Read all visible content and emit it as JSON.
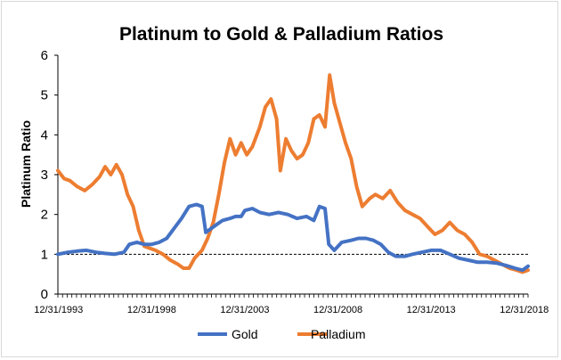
{
  "chart_data": {
    "type": "line",
    "title": "Platinum to Gold & Palladium Ratios",
    "xlabel": "",
    "ylabel": "Platinum Ratio",
    "x_ticks": [
      "12/31/1993",
      "12/31/1998",
      "12/31/2003",
      "12/31/2008",
      "12/31/2013",
      "12/31/2018"
    ],
    "y_ticks": [
      "0",
      "1",
      "2",
      "3",
      "4",
      "5",
      "6"
    ],
    "xlim": [
      1993.96,
      2019.2
    ],
    "ylim": [
      0,
      6
    ],
    "grid": false,
    "legend_position": "bottom",
    "reference_line": {
      "y": 1,
      "style": "dashed",
      "color": "#000000"
    },
    "series": [
      {
        "name": "Gold",
        "color": "#4472c4",
        "points": [
          [
            1993.96,
            1.0
          ],
          [
            1994.5,
            1.05
          ],
          [
            1995.0,
            1.08
          ],
          [
            1995.5,
            1.1
          ],
          [
            1996.0,
            1.05
          ],
          [
            1996.5,
            1.02
          ],
          [
            1997.0,
            1.0
          ],
          [
            1997.5,
            1.05
          ],
          [
            1997.8,
            1.25
          ],
          [
            1998.2,
            1.3
          ],
          [
            1998.6,
            1.25
          ],
          [
            1999.0,
            1.25
          ],
          [
            1999.4,
            1.3
          ],
          [
            1999.8,
            1.4
          ],
          [
            2000.2,
            1.65
          ],
          [
            2000.6,
            1.9
          ],
          [
            2001.0,
            2.2
          ],
          [
            2001.4,
            2.25
          ],
          [
            2001.7,
            2.2
          ],
          [
            2001.9,
            1.55
          ],
          [
            2002.2,
            1.65
          ],
          [
            2002.5,
            1.75
          ],
          [
            2002.8,
            1.85
          ],
          [
            2003.2,
            1.9
          ],
          [
            2003.5,
            1.95
          ],
          [
            2003.8,
            1.95
          ],
          [
            2004.0,
            2.1
          ],
          [
            2004.4,
            2.15
          ],
          [
            2004.8,
            2.05
          ],
          [
            2005.3,
            2.0
          ],
          [
            2005.8,
            2.05
          ],
          [
            2006.3,
            2.0
          ],
          [
            2006.8,
            1.9
          ],
          [
            2007.3,
            1.95
          ],
          [
            2007.7,
            1.85
          ],
          [
            2008.0,
            2.2
          ],
          [
            2008.3,
            2.15
          ],
          [
            2008.5,
            1.25
          ],
          [
            2008.8,
            1.1
          ],
          [
            2009.2,
            1.3
          ],
          [
            2009.7,
            1.35
          ],
          [
            2010.1,
            1.4
          ],
          [
            2010.5,
            1.4
          ],
          [
            2010.9,
            1.35
          ],
          [
            2011.3,
            1.25
          ],
          [
            2011.7,
            1.05
          ],
          [
            2012.1,
            0.95
          ],
          [
            2012.6,
            0.95
          ],
          [
            2013.0,
            1.0
          ],
          [
            2013.5,
            1.05
          ],
          [
            2014.0,
            1.1
          ],
          [
            2014.5,
            1.1
          ],
          [
            2015.0,
            1.0
          ],
          [
            2015.5,
            0.9
          ],
          [
            2016.0,
            0.85
          ],
          [
            2016.5,
            0.8
          ],
          [
            2017.0,
            0.8
          ],
          [
            2017.5,
            0.78
          ],
          [
            2018.0,
            0.72
          ],
          [
            2018.5,
            0.65
          ],
          [
            2018.9,
            0.6
          ],
          [
            2019.2,
            0.7
          ]
        ]
      },
      {
        "name": "Palladium",
        "color": "#ed7d31",
        "points": [
          [
            1993.96,
            3.1
          ],
          [
            1994.3,
            2.9
          ],
          [
            1994.6,
            2.85
          ],
          [
            1995.0,
            2.7
          ],
          [
            1995.4,
            2.6
          ],
          [
            1995.8,
            2.75
          ],
          [
            1996.2,
            2.95
          ],
          [
            1996.5,
            3.2
          ],
          [
            1996.8,
            3.0
          ],
          [
            1997.1,
            3.25
          ],
          [
            1997.4,
            3.0
          ],
          [
            1997.7,
            2.5
          ],
          [
            1998.0,
            2.2
          ],
          [
            1998.3,
            1.6
          ],
          [
            1998.6,
            1.2
          ],
          [
            1998.9,
            1.15
          ],
          [
            1999.2,
            1.1
          ],
          [
            1999.6,
            1.0
          ],
          [
            2000.0,
            0.85
          ],
          [
            2000.4,
            0.75
          ],
          [
            2000.7,
            0.65
          ],
          [
            2001.0,
            0.65
          ],
          [
            2001.3,
            0.9
          ],
          [
            2001.7,
            1.1
          ],
          [
            2002.0,
            1.4
          ],
          [
            2002.3,
            1.8
          ],
          [
            2002.6,
            2.5
          ],
          [
            2002.9,
            3.3
          ],
          [
            2003.2,
            3.9
          ],
          [
            2003.5,
            3.5
          ],
          [
            2003.8,
            3.8
          ],
          [
            2004.1,
            3.5
          ],
          [
            2004.4,
            3.7
          ],
          [
            2004.8,
            4.2
          ],
          [
            2005.1,
            4.7
          ],
          [
            2005.4,
            4.9
          ],
          [
            2005.7,
            4.4
          ],
          [
            2005.9,
            3.1
          ],
          [
            2006.2,
            3.9
          ],
          [
            2006.5,
            3.6
          ],
          [
            2006.8,
            3.4
          ],
          [
            2007.1,
            3.5
          ],
          [
            2007.4,
            3.8
          ],
          [
            2007.7,
            4.4
          ],
          [
            2008.0,
            4.5
          ],
          [
            2008.3,
            4.2
          ],
          [
            2008.55,
            5.5
          ],
          [
            2008.8,
            4.8
          ],
          [
            2009.1,
            4.3
          ],
          [
            2009.4,
            3.8
          ],
          [
            2009.7,
            3.4
          ],
          [
            2010.0,
            2.7
          ],
          [
            2010.3,
            2.2
          ],
          [
            2010.7,
            2.4
          ],
          [
            2011.0,
            2.5
          ],
          [
            2011.4,
            2.4
          ],
          [
            2011.8,
            2.6
          ],
          [
            2012.2,
            2.3
          ],
          [
            2012.6,
            2.1
          ],
          [
            2013.0,
            2.0
          ],
          [
            2013.4,
            1.9
          ],
          [
            2013.8,
            1.7
          ],
          [
            2014.2,
            1.5
          ],
          [
            2014.6,
            1.6
          ],
          [
            2015.0,
            1.8
          ],
          [
            2015.4,
            1.6
          ],
          [
            2015.8,
            1.5
          ],
          [
            2016.2,
            1.3
          ],
          [
            2016.6,
            1.0
          ],
          [
            2017.0,
            0.95
          ],
          [
            2017.4,
            0.85
          ],
          [
            2017.8,
            0.75
          ],
          [
            2018.2,
            0.65
          ],
          [
            2018.6,
            0.6
          ],
          [
            2018.9,
            0.55
          ],
          [
            2019.2,
            0.6
          ]
        ]
      }
    ]
  }
}
